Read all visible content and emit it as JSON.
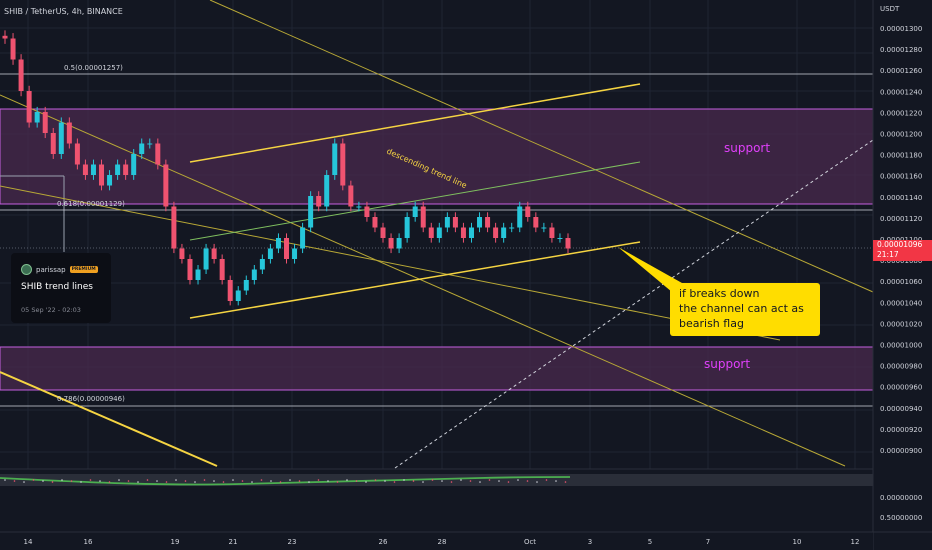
{
  "header": {
    "symbol_line": "SHIB / TetherUS, 4h, BINANCE"
  },
  "axis": {
    "currency": "USDT",
    "price_ticks": [
      "0.00001300",
      "0.00001280",
      "0.00001260",
      "0.00001240",
      "0.00001220",
      "0.00001200",
      "0.00001180",
      "0.00001160",
      "0.00001140",
      "0.00001120",
      "0.00001100",
      "0.00001080",
      "0.00001060",
      "0.00001040",
      "0.00001020",
      "0.00001000",
      "0.00000980",
      "0.00000960",
      "0.00000940",
      "0.00000920",
      "0.00000900",
      "0.00000000",
      "0.50000000"
    ],
    "date_ticks": [
      "14",
      "16",
      "19",
      "21",
      "23",
      "26",
      "28",
      "Oct",
      "3",
      "5",
      "7",
      "10",
      "12"
    ],
    "current_price": "0.00001096",
    "countdown": "21:17"
  },
  "annotations": {
    "fib_05": "0.5(0.00001257)",
    "fib_0618": "0.618(0.00001129)",
    "fib_0786": "0.786(0.00000946)",
    "support_upper": "support",
    "support_lower": "support",
    "trend_label": "descending trend line",
    "callout_line1": "if breaks down",
    "callout_line2": "the channel can act as",
    "callout_line3": "bearish flag"
  },
  "publisher_card": {
    "author": "parissap",
    "badge": "PREMIUM",
    "title": "SHIB trend lines",
    "date": "05 Sep '22 - 02:03"
  },
  "colors": {
    "background": "#131722",
    "up": "#26c6da",
    "down": "#ef5370",
    "support_zone": "#4a2a4e",
    "zone_edge": "#c45fe0",
    "trend_yellow": "#f5d442",
    "channel_green": "#7fbf5f",
    "callout_bg": "#ffdd00",
    "support_text": "#e040fb"
  },
  "chart_data": {
    "type": "candlestick",
    "symbol": "SHIB / TetherUS",
    "timeframe": "4h",
    "exchange": "BINANCE",
    "fib_levels": [
      {
        "ratio": 0.5,
        "price": 1.257e-05
      },
      {
        "ratio": 0.618,
        "price": 1.129e-05
      },
      {
        "ratio": 0.786,
        "price": 9.46e-06
      }
    ],
    "support_zones": [
      {
        "from": 1.132e-05,
        "to": 1.222e-05
      },
      {
        "from": 9.62e-06,
        "to": 1e-05
      }
    ],
    "approx_close_series": [
      1.29e-05,
      1.27e-05,
      1.24e-05,
      1.21e-05,
      1.22e-05,
      1.2e-05,
      1.18e-05,
      1.21e-05,
      1.19e-05,
      1.17e-05,
      1.16e-05,
      1.17e-05,
      1.15e-05,
      1.16e-05,
      1.17e-05,
      1.16e-05,
      1.18e-05,
      1.19e-05,
      1.19e-05,
      1.17e-05,
      1.13e-05,
      1.09e-05,
      1.08e-05,
      1.06e-05,
      1.07e-05,
      1.09e-05,
      1.08e-05,
      1.06e-05,
      1.04e-05,
      1.05e-05,
      1.06e-05,
      1.07e-05,
      1.08e-05,
      1.09e-05,
      1.1e-05,
      1.08e-05,
      1.09e-05,
      1.11e-05,
      1.14e-05,
      1.13e-05,
      1.16e-05,
      1.19e-05,
      1.15e-05,
      1.13e-05,
      1.13e-05,
      1.12e-05,
      1.11e-05,
      1.1e-05,
      1.09e-05,
      1.1e-05,
      1.12e-05,
      1.13e-05,
      1.11e-05,
      1.1e-05,
      1.11e-05,
      1.12e-05,
      1.11e-05,
      1.1e-05,
      1.11e-05,
      1.12e-05,
      1.11e-05,
      1.1e-05,
      1.11e-05,
      1.11e-05,
      1.13e-05,
      1.12e-05,
      1.11e-05,
      1.11e-05,
      1.1e-05,
      1.1e-05,
      1.09e-05
    ],
    "current_price": 1.096e-05
  }
}
